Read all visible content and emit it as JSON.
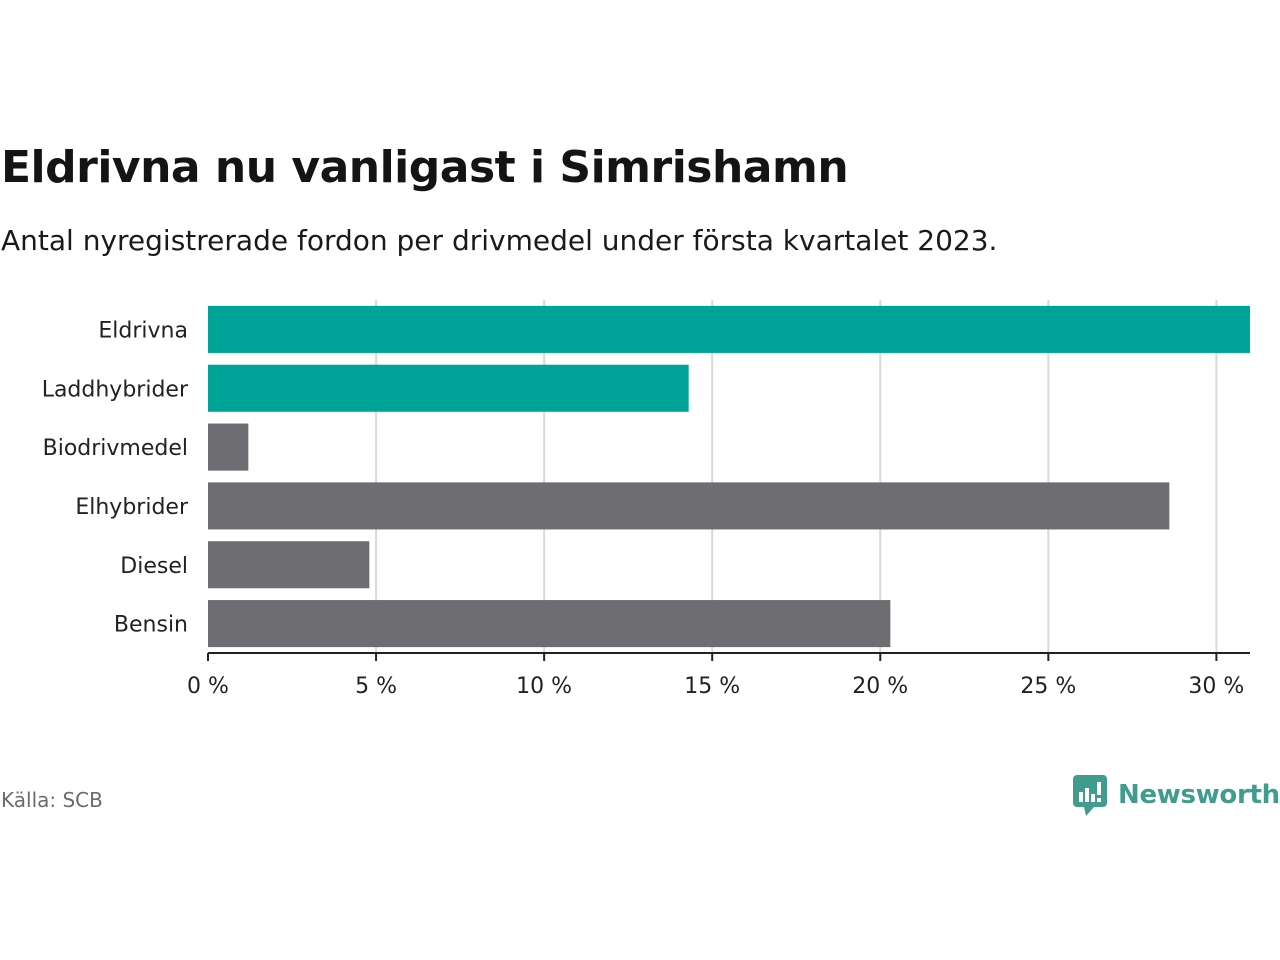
{
  "title": "Eldrivna nu vanligast i Simrishamn",
  "subtitle": "Antal nyregistrerade fordon per drivmedel under första kvartalet 2023.",
  "source": "Källa: SCB",
  "brand": {
    "name": "Newsworthy",
    "icon": "newsworthy-logo-icon",
    "color": "#3f9c8f"
  },
  "colors": {
    "highlight": "#00a398",
    "default": "#6e6d72",
    "grid": "#d9d9d9",
    "axis": "#222222"
  },
  "chart_data": {
    "type": "bar",
    "orientation": "horizontal",
    "categories": [
      "Eldrivna",
      "Laddhybrider",
      "Biodrivmedel",
      "Elhybrider",
      "Diesel",
      "Bensin"
    ],
    "values": [
      31.0,
      14.3,
      1.2,
      28.6,
      4.8,
      20.3
    ],
    "highlighted": [
      "Eldrivna",
      "Laddhybrider"
    ],
    "unit": "%",
    "xlim": [
      0,
      31
    ],
    "xticks": [
      0,
      5,
      10,
      15,
      20,
      25,
      30
    ],
    "xtick_labels": [
      "0 %",
      "5 %",
      "10 %",
      "15 %",
      "20 %",
      "25 %",
      "30 %"
    ],
    "grid": true
  }
}
